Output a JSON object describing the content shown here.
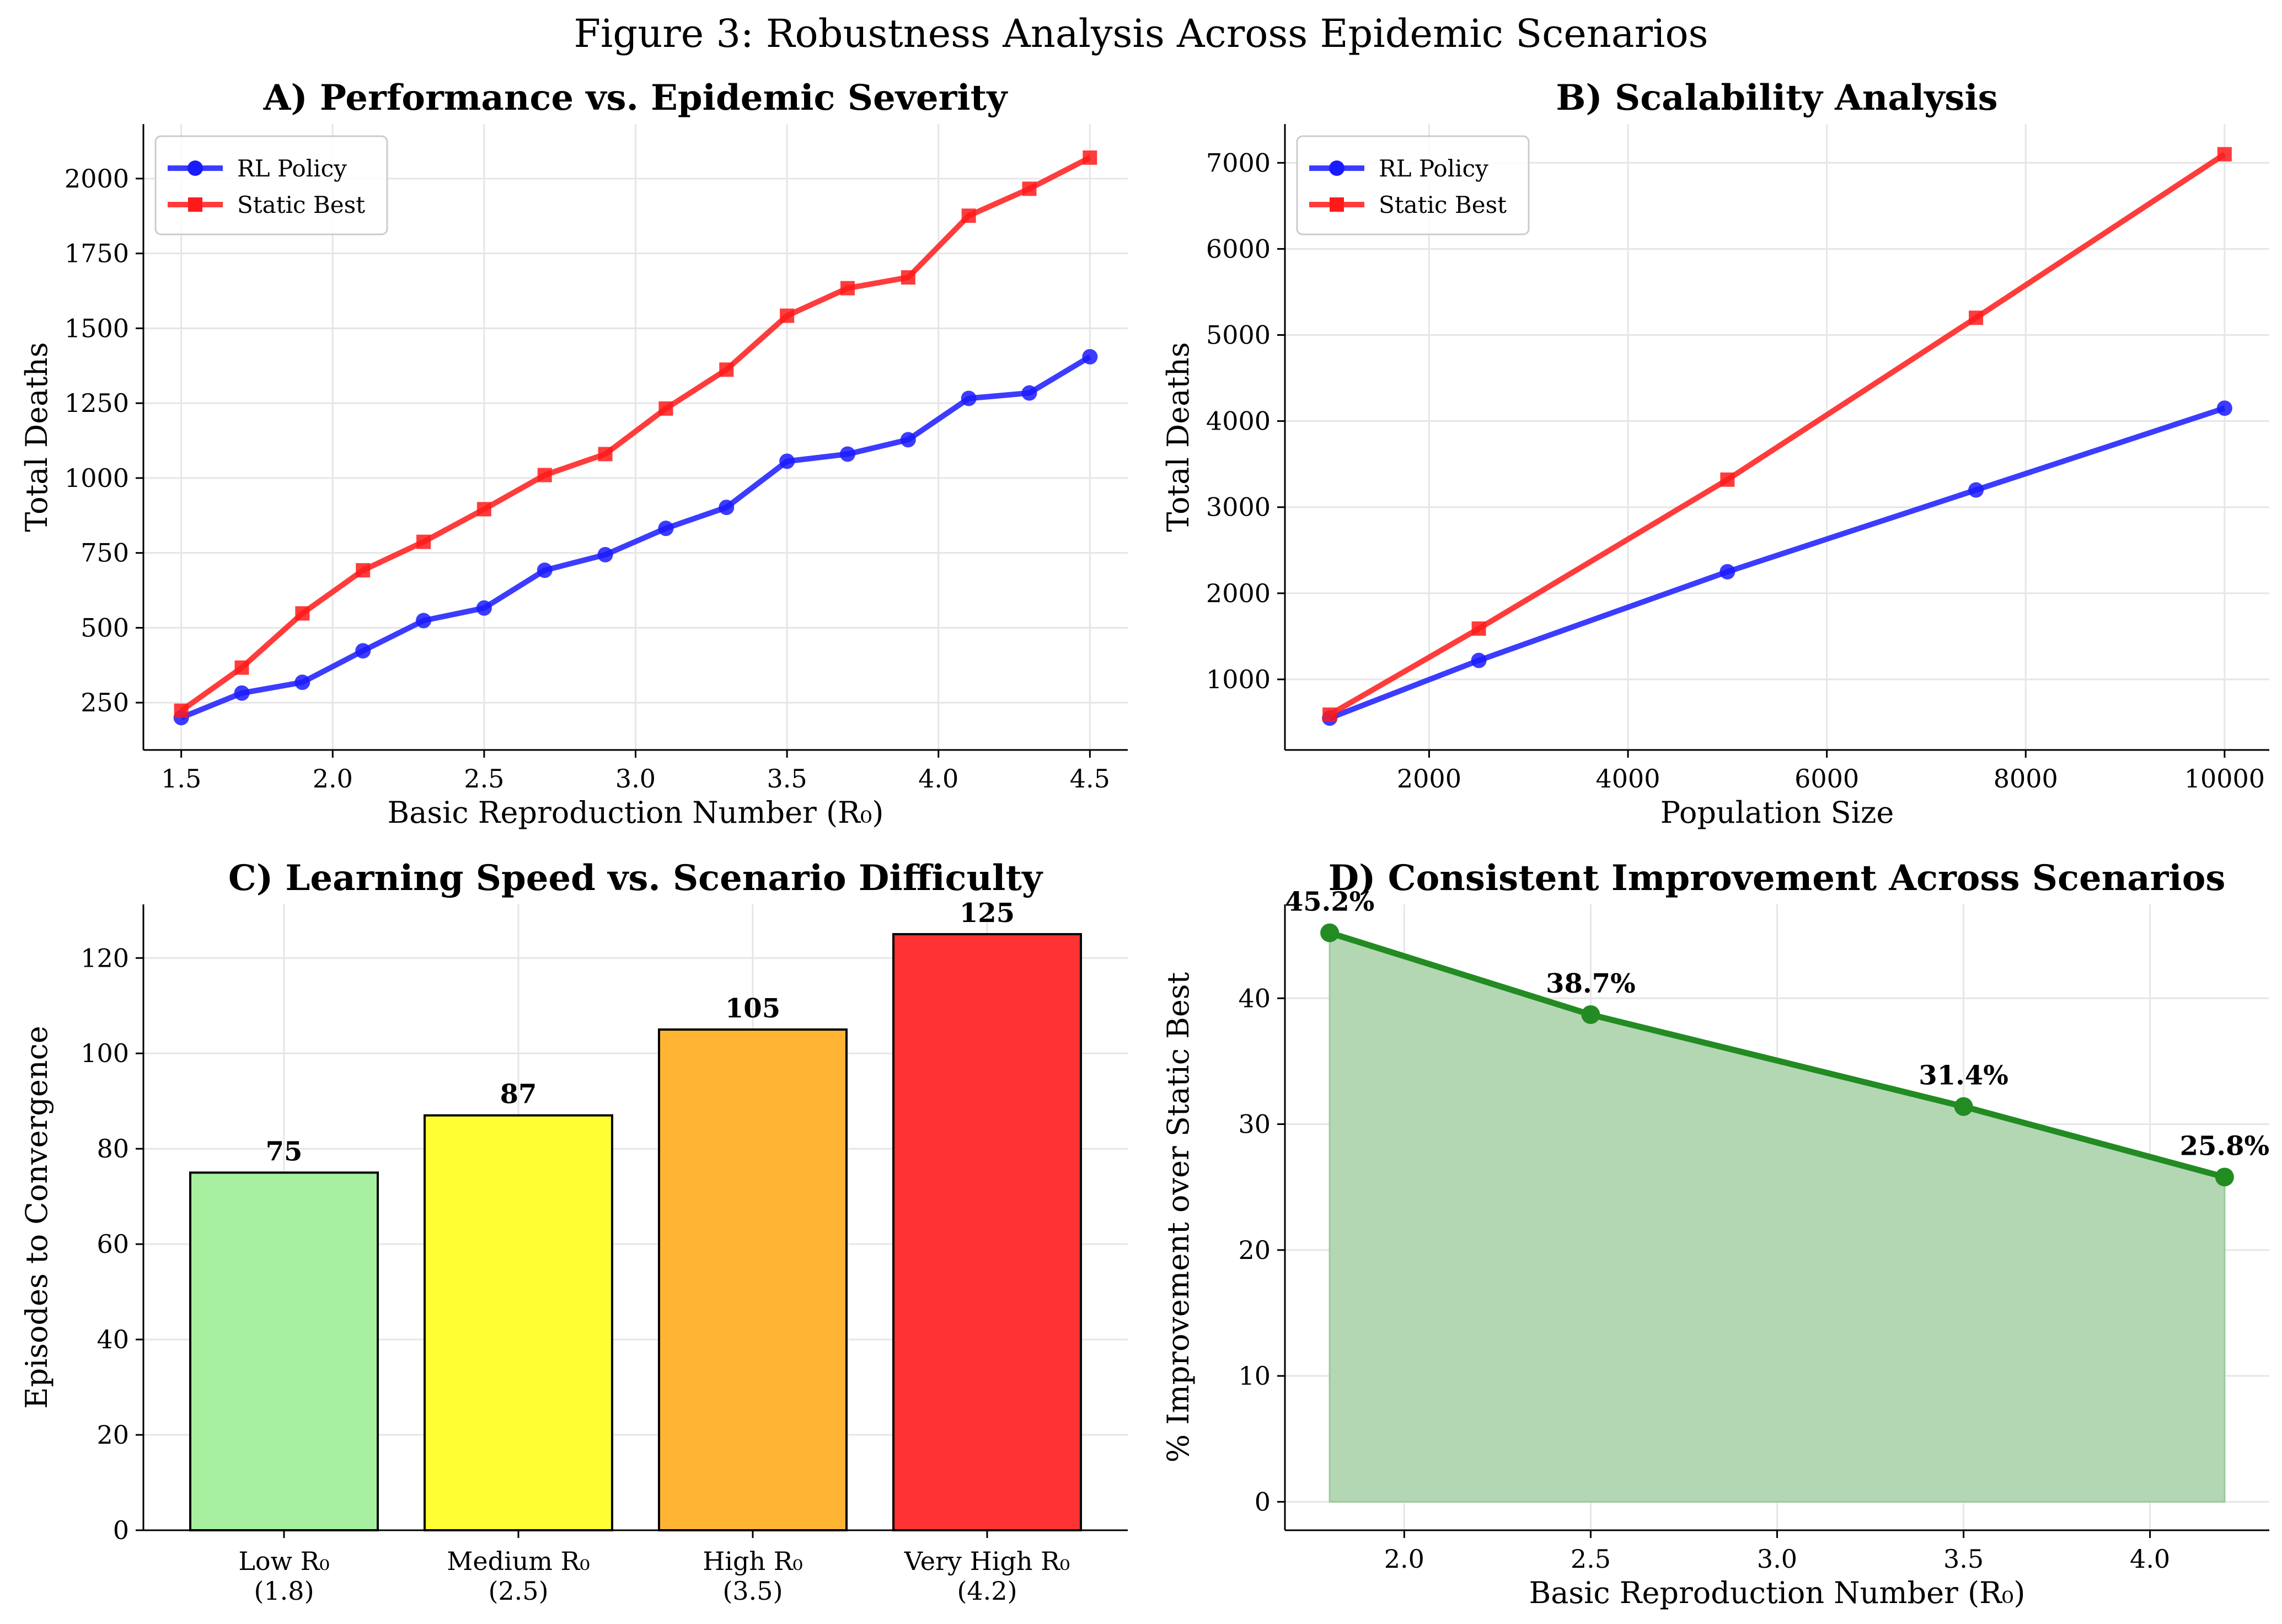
{
  "figure_title": "Figure 3: Robustness Analysis Across Epidemic Scenarios",
  "colors": {
    "rl": "#1a1aff",
    "static": "#ff1a1a",
    "improvement": "#228b22",
    "fill": "#b3d7b3",
    "bar_edge": "#000000"
  },
  "chart_data": [
    {
      "type": "line",
      "title": "A) Performance vs. Epidemic Severity",
      "xlabel": "Basic Reproduction Number (R₀)",
      "ylabel": "Total Deaths",
      "x": [
        1.5,
        1.7,
        1.9,
        2.1,
        2.3,
        2.5,
        2.7,
        2.9,
        3.1,
        3.3,
        3.5,
        3.7,
        3.9,
        4.1,
        4.3,
        4.5
      ],
      "series": [
        {
          "name": "RL Policy",
          "marker": "circle",
          "values": [
            200,
            282,
            318,
            423,
            524,
            566,
            692,
            744,
            832,
            902,
            1056,
            1080,
            1128,
            1266,
            1284,
            1405
          ]
        },
        {
          "name": "Static Best",
          "marker": "square",
          "values": [
            223,
            367,
            548,
            692,
            787,
            896,
            1010,
            1080,
            1232,
            1362,
            1542,
            1634,
            1670,
            1876,
            1966,
            2070
          ]
        }
      ],
      "xlim": [
        1.375,
        4.625
      ],
      "ylim": [
        92,
        2182
      ],
      "xticks": [
        1.5,
        2.0,
        2.5,
        3.0,
        3.5,
        4.0,
        4.5
      ],
      "xtick_labels": [
        "1.5",
        "2.0",
        "2.5",
        "3.0",
        "3.5",
        "4.0",
        "4.5"
      ],
      "yticks": [
        250,
        500,
        750,
        1000,
        1250,
        1500,
        1750,
        2000
      ],
      "ytick_labels": [
        "250",
        "500",
        "750",
        "1000",
        "1250",
        "1500",
        "1750",
        "2000"
      ],
      "legend": "upper-left",
      "grid": true
    },
    {
      "type": "line",
      "title": "B) Scalability Analysis",
      "xlabel": "Population Size",
      "ylabel": "Total Deaths",
      "x": [
        1000,
        2500,
        5000,
        7500,
        10000
      ],
      "series": [
        {
          "name": "RL Policy",
          "marker": "circle",
          "values": [
            550,
            1220,
            2250,
            3200,
            4150
          ]
        },
        {
          "name": "Static Best",
          "marker": "square",
          "values": [
            590,
            1590,
            3320,
            5200,
            7100
          ]
        }
      ],
      "xlim": [
        550,
        10450
      ],
      "ylim": [
        180,
        7450
      ],
      "xticks": [
        2000,
        4000,
        6000,
        8000,
        10000
      ],
      "xtick_labels": [
        "2000",
        "4000",
        "6000",
        "8000",
        "10000"
      ],
      "yticks": [
        1000,
        2000,
        3000,
        4000,
        5000,
        6000,
        7000
      ],
      "ytick_labels": [
        "1000",
        "2000",
        "3000",
        "4000",
        "5000",
        "6000",
        "7000"
      ],
      "legend": "upper-left",
      "grid": true
    },
    {
      "type": "bar",
      "title": "C) Learning Speed vs. Scenario Difficulty",
      "ylabel": "Episodes to Convergence",
      "categories": [
        [
          "Low R₀",
          "(1.8)"
        ],
        [
          "Medium R₀",
          "(2.5)"
        ],
        [
          "High R₀",
          "(3.5)"
        ],
        [
          "Very High R₀",
          "(4.2)"
        ]
      ],
      "values": [
        75,
        87,
        105,
        125
      ],
      "value_labels": [
        "75",
        "87",
        "105",
        "125"
      ],
      "bar_colors": [
        "#a6f0a0",
        "#ffff33",
        "#ffb433",
        "#ff3333"
      ],
      "ylim": [
        0,
        131.25
      ],
      "yticks": [
        0,
        20,
        40,
        60,
        80,
        100,
        120
      ],
      "ytick_labels": [
        "0",
        "20",
        "40",
        "60",
        "80",
        "100",
        "120"
      ],
      "grid": true
    },
    {
      "type": "area",
      "title": "D) Consistent Improvement Across Scenarios",
      "xlabel": "Basic Reproduction Number (R₀)",
      "ylabel": "% Improvement over Static Best",
      "x": [
        1.8,
        2.5,
        3.5,
        4.2
      ],
      "values": [
        45.2,
        38.7,
        31.4,
        25.8
      ],
      "value_labels": [
        "45.2%",
        "38.7%",
        "31.4%",
        "25.8%"
      ],
      "xlim": [
        1.68,
        4.32
      ],
      "ylim": [
        -2.26,
        47.46
      ],
      "xticks": [
        2.0,
        2.5,
        3.0,
        3.5,
        4.0
      ],
      "xtick_labels": [
        "2.0",
        "2.5",
        "3.0",
        "3.5",
        "4.0"
      ],
      "yticks": [
        0,
        10,
        20,
        30,
        40
      ],
      "ytick_labels": [
        "0",
        "10",
        "20",
        "30",
        "40"
      ],
      "grid": true
    }
  ]
}
